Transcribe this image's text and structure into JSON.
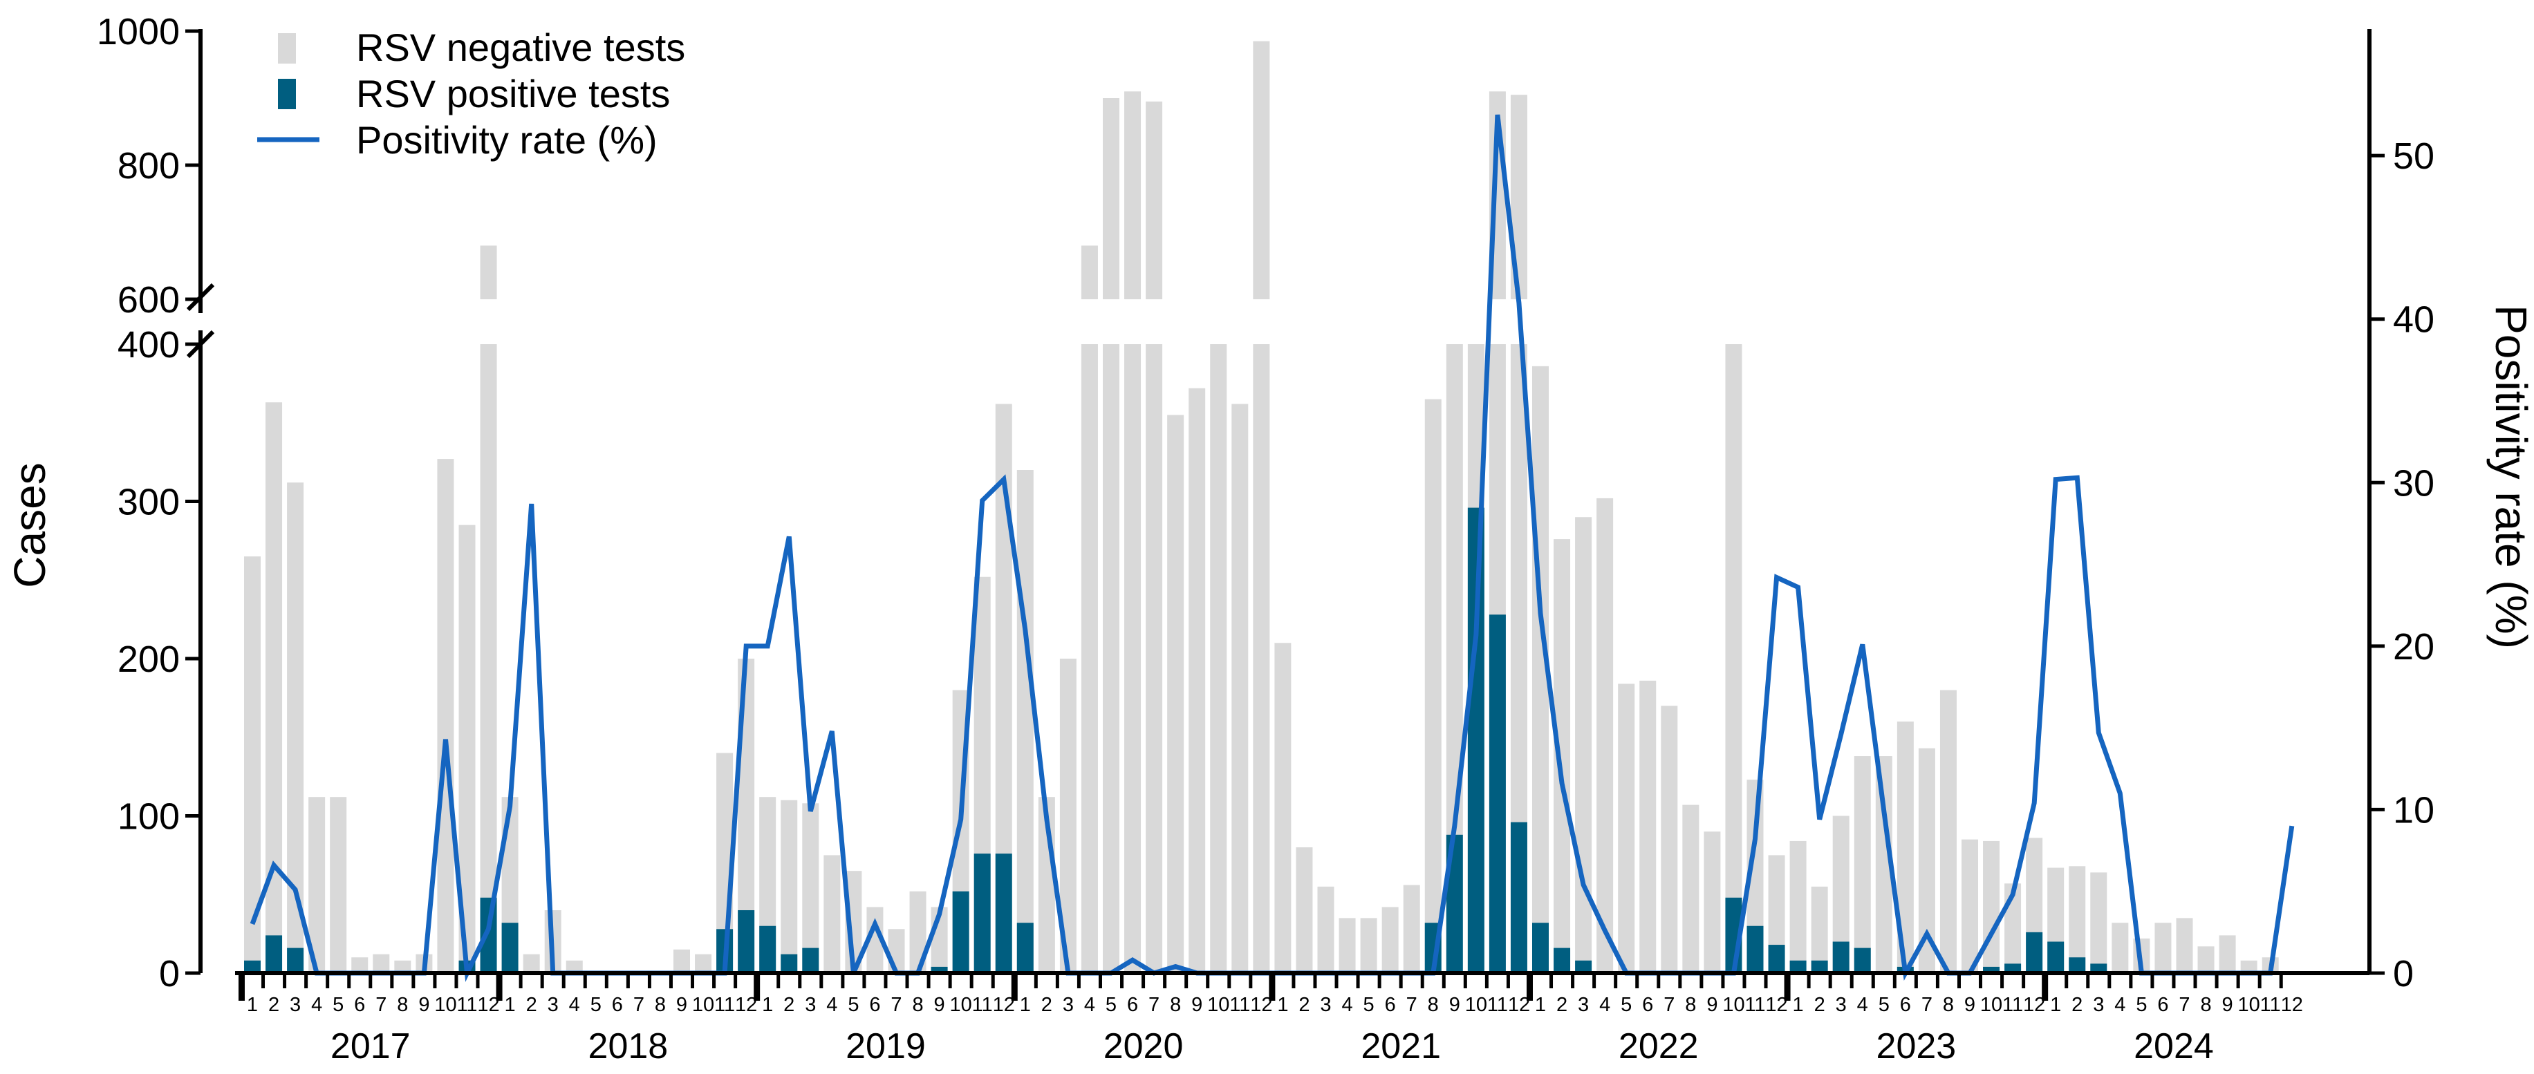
{
  "chart_data": {
    "type": "bar",
    "title": "",
    "ylabel": "Cases",
    "y2label": "Positivity rate (%)",
    "y_axis_break": {
      "lower_range": [
        0,
        400
      ],
      "upper_range": [
        600,
        1000
      ]
    },
    "ylim": [
      0,
      1000
    ],
    "y2lim": [
      0,
      55
    ],
    "yticks": [
      "0",
      "100",
      "200",
      "300",
      "400",
      "600",
      "800",
      "1000"
    ],
    "y2ticks": [
      "0",
      "10",
      "20",
      "30",
      "40",
      "50"
    ],
    "legend_position": "top-left",
    "legend": [
      "RSV negative tests",
      "RSV positive tests",
      "Positivity rate (%)"
    ],
    "colors": {
      "negative": "#d9d9d9",
      "positive": "#005e80",
      "rate": "#1565c0"
    },
    "years": [
      "2017",
      "2018",
      "2019",
      "2020",
      "2021",
      "2022",
      "2023",
      "2024"
    ],
    "months": [
      "1",
      "2",
      "3",
      "4",
      "5",
      "6",
      "7",
      "8",
      "9",
      "10",
      "11",
      "12"
    ],
    "series": [
      {
        "name": "RSV negative tests",
        "values": [
          265,
          363,
          312,
          112,
          112,
          10,
          12,
          8,
          12,
          327,
          285,
          680,
          112,
          12,
          40,
          8,
          0,
          0,
          0,
          0,
          15,
          12,
          140,
          200,
          112,
          110,
          108,
          75,
          65,
          42,
          28,
          52,
          42,
          180,
          252,
          362,
          320,
          112,
          200,
          680,
          900,
          910,
          895,
          355,
          372,
          600,
          362,
          985,
          210,
          80,
          55,
          35,
          35,
          42,
          56,
          365,
          400,
          400,
          910,
          905,
          386,
          276,
          290,
          302,
          184,
          186,
          170,
          107,
          90,
          400,
          123,
          75,
          84,
          55,
          100,
          138,
          138,
          160,
          143,
          180,
          85,
          84,
          57,
          86,
          67,
          68,
          64,
          32,
          22,
          32,
          35,
          17,
          24,
          8,
          10
        ]
      },
      {
        "name": "RSV positive tests",
        "values": [
          8,
          24,
          16,
          0,
          0,
          0,
          0,
          0,
          0,
          0,
          8,
          48,
          32,
          0,
          0,
          0,
          0,
          0,
          0,
          0,
          0,
          0,
          28,
          40,
          30,
          12,
          16,
          0,
          0,
          0,
          0,
          0,
          4,
          52,
          76,
          76,
          32,
          0,
          0,
          0,
          0,
          0,
          0,
          0,
          0,
          0,
          0,
          0,
          0,
          0,
          0,
          0,
          0,
          0,
          0,
          32,
          88,
          296,
          228,
          96,
          32,
          16,
          8,
          0,
          0,
          0,
          0,
          0,
          0,
          48,
          30,
          18,
          8,
          8,
          20,
          16,
          0,
          4,
          0,
          0,
          0,
          4,
          6,
          26,
          20,
          10,
          6,
          0,
          0,
          0,
          0,
          0,
          0,
          0,
          0
        ]
      },
      {
        "name": "Positivity rate (%)",
        "values": [
          3,
          6.6,
          5.1,
          0,
          0,
          0,
          0,
          0,
          0,
          14.3,
          0,
          2.7,
          10.2,
          28.7,
          0,
          0,
          0,
          0,
          0,
          0,
          0,
          0,
          0,
          20,
          20,
          26.7,
          9.9,
          14.8,
          0,
          3,
          0,
          0,
          3.6,
          9.4,
          28.9,
          30.2,
          21,
          9.4,
          0,
          0,
          0,
          0.8,
          0,
          0.4,
          0,
          0,
          0,
          0,
          0,
          0,
          0,
          0,
          0,
          0,
          0,
          0,
          9,
          20.7,
          52.5,
          41,
          22,
          11.6,
          5.4,
          2.6,
          0,
          0,
          0,
          0,
          0,
          0,
          8.2,
          24.2,
          23.6,
          9.4,
          14.6,
          20.1,
          9.9,
          0,
          2.4,
          0,
          0,
          2.4,
          4.8,
          10.4,
          30.2,
          30.3,
          14.7,
          11,
          0,
          0,
          0,
          0,
          0,
          0,
          0,
          9
        ]
      }
    ]
  }
}
